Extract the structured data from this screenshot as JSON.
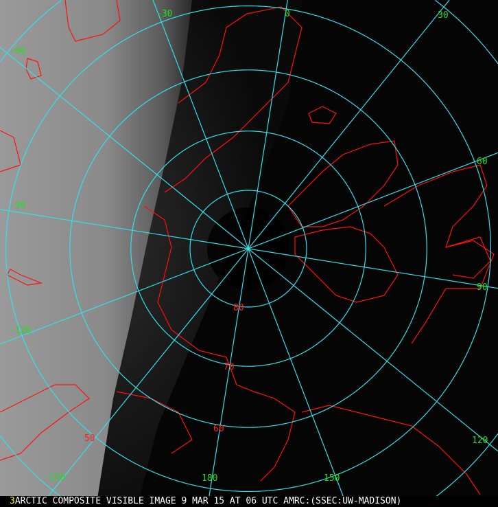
{
  "image": {
    "frame_number": "3",
    "caption": "ARCTIC COMPOSITE VISIBLE IMAGE 9 MAR 15 AT 06 UTC AMRC:(SSEC:UW-MADISON)"
  },
  "grid": {
    "color": "#33e0e8",
    "longitude_label_color": "#22dd22",
    "latitude_label_color": "#ff2020",
    "coastline_color": "#ff1010",
    "longitudes": [
      {
        "value": 0,
        "label": "0"
      },
      {
        "value": 30,
        "label": "30"
      },
      {
        "value": 60,
        "label": "60"
      },
      {
        "value": 90,
        "label": "90"
      },
      {
        "value": 120,
        "label": "120"
      },
      {
        "value": 150,
        "label": "150"
      },
      {
        "value": 180,
        "label": "180"
      },
      {
        "value": -150,
        "label": "-150"
      },
      {
        "value": -120,
        "label": "-120"
      },
      {
        "value": -90,
        "label": "-90"
      },
      {
        "value": -60,
        "label": "-60"
      },
      {
        "value": -30,
        "label": "-30"
      }
    ],
    "latitudes": [
      {
        "value": 80,
        "label": "80"
      },
      {
        "value": 70,
        "label": "70"
      },
      {
        "value": 60,
        "label": "60"
      },
      {
        "value": 50,
        "label": "50"
      },
      {
        "value": 40,
        "label": ""
      },
      {
        "value": 30,
        "label": ""
      }
    ]
  }
}
